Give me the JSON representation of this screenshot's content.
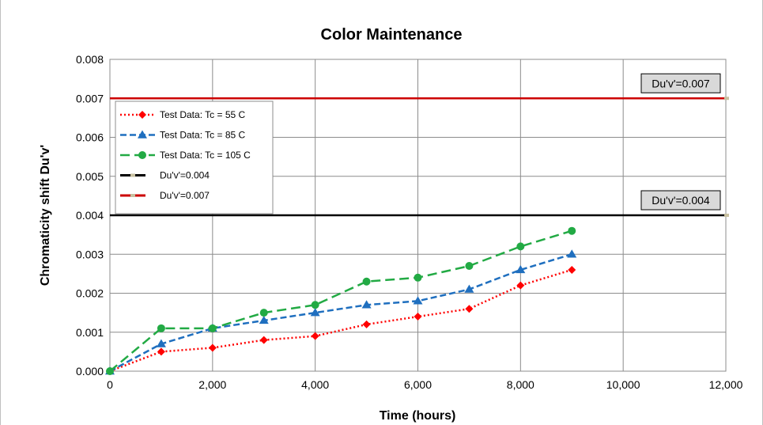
{
  "chart_data": {
    "type": "line",
    "title": "Color Maintenance",
    "xlabel": "Time (hours)",
    "ylabel": "Chromaticity shift Du'v'",
    "xlim": [
      0,
      12000
    ],
    "ylim": [
      0,
      0.008
    ],
    "x_ticks": [
      0,
      2000,
      4000,
      6000,
      8000,
      10000,
      12000
    ],
    "x_tick_labels": [
      "0",
      "2,000",
      "4,000",
      "6,000",
      "8,000",
      "10,000",
      "12,000"
    ],
    "y_ticks": [
      0,
      0.001,
      0.002,
      0.003,
      0.004,
      0.005,
      0.006,
      0.007,
      0.008
    ],
    "y_tick_labels": [
      "0.000",
      "0.001",
      "0.002",
      "0.003",
      "0.004",
      "0.005",
      "0.006",
      "0.007",
      "0.008"
    ],
    "grid": true,
    "legend_position": "top-left",
    "series": [
      {
        "name": "Test Data: Tc = 55 C",
        "color": "#ff0000",
        "marker": "diamond",
        "dash": "dotted",
        "x": [
          0,
          1000,
          2000,
          3000,
          4000,
          5000,
          6000,
          7000,
          8000,
          9000
        ],
        "y": [
          0.0,
          0.0005,
          0.0006,
          0.0008,
          0.0009,
          0.0012,
          0.0014,
          0.0016,
          0.0022,
          0.0026
        ]
      },
      {
        "name": "Test Data: Tc = 85 C",
        "color": "#1f6fbf",
        "marker": "triangle",
        "dash": "dashed",
        "x": [
          0,
          1000,
          2000,
          3000,
          4000,
          5000,
          6000,
          7000,
          8000,
          9000
        ],
        "y": [
          0.0,
          0.0007,
          0.0011,
          0.0013,
          0.0015,
          0.0017,
          0.0018,
          0.0021,
          0.0026,
          0.003
        ]
      },
      {
        "name": "Test Data: Tc = 105 C",
        "color": "#22aa44",
        "marker": "circle",
        "dash": "longdash",
        "x": [
          0,
          1000,
          2000,
          3000,
          4000,
          5000,
          6000,
          7000,
          8000,
          9000
        ],
        "y": [
          0.0,
          0.0011,
          0.0011,
          0.0015,
          0.0017,
          0.0023,
          0.0024,
          0.0027,
          0.0032,
          0.0036
        ]
      }
    ],
    "reference_lines": [
      {
        "name": "Du'v'=0.004",
        "value": 0.004,
        "color": "#000000",
        "annotation": "Du'v'=0.004"
      },
      {
        "name": "Du'v'=0.007",
        "value": 0.007,
        "color": "#cc0000",
        "annotation": "Du'v'=0.007"
      }
    ]
  }
}
